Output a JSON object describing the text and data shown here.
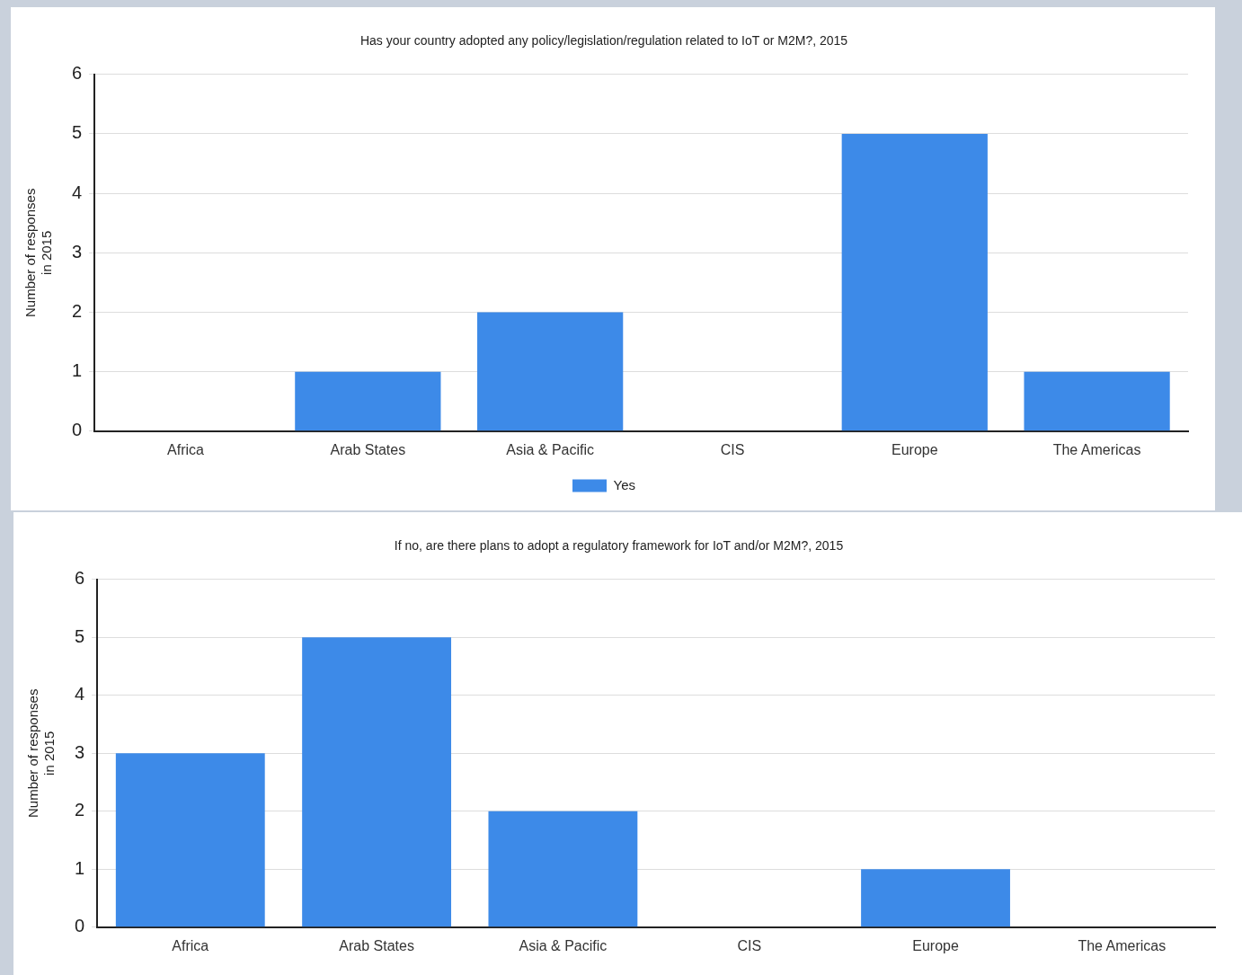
{
  "chart_data": [
    {
      "type": "bar",
      "title": "Has your country adopted any policy/legislation/regulation related to IoT or M2M?, 2015",
      "ylabel": "Number of responses in 2015",
      "categories": [
        "Africa",
        "Arab States",
        "Asia & Pacific",
        "CIS",
        "Europe",
        "The Americas"
      ],
      "series": [
        {
          "name": "Yes",
          "color": "#3d8ae8",
          "values": [
            0,
            1,
            2,
            0,
            5,
            1
          ]
        }
      ],
      "ylim": [
        0,
        6
      ],
      "yticks": [
        0,
        1,
        2,
        3,
        4,
        5,
        6
      ],
      "grid": "y",
      "legend": "bottom"
    },
    {
      "type": "bar",
      "title": "If no, are there plans to adopt a regulatory framework for IoT and/or M2M?, 2015",
      "ylabel": "Number of responses in 2015",
      "categories": [
        "Africa",
        "Arab States",
        "Asia & Pacific",
        "CIS",
        "Europe",
        "The Americas"
      ],
      "series": [
        {
          "color": "#3d8ae8",
          "values": [
            3,
            5,
            2,
            0,
            1,
            0
          ]
        }
      ],
      "ylim": [
        0,
        6
      ],
      "yticks": [
        0,
        1,
        2,
        3,
        4,
        5,
        6
      ],
      "grid": "y",
      "legend": false
    }
  ]
}
